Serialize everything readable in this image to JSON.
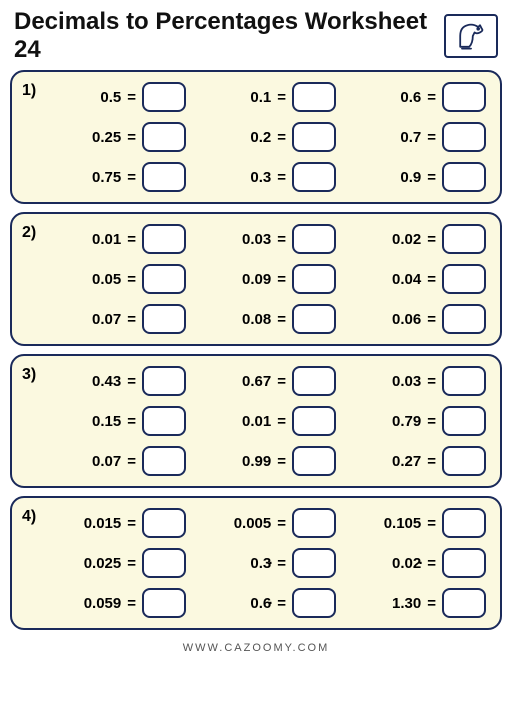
{
  "title": "Decimals to Percentages Worksheet 24",
  "footer": "WWW.CAZOOMY.COM",
  "icon_name": "falcon-icon",
  "colors": {
    "panel_bg": "#fbf9e0",
    "border": "#1a2a5a",
    "page_bg": "#ffffff",
    "text": "#000000"
  },
  "panels": [
    {
      "num": "1)",
      "items": [
        {
          "d": "0.5"
        },
        {
          "d": "0.1"
        },
        {
          "d": "0.6"
        },
        {
          "d": "0.25"
        },
        {
          "d": "0.2"
        },
        {
          "d": "0.7"
        },
        {
          "d": "0.75"
        },
        {
          "d": "0.3"
        },
        {
          "d": "0.9"
        }
      ]
    },
    {
      "num": "2)",
      "items": [
        {
          "d": "0.01"
        },
        {
          "d": "0.03"
        },
        {
          "d": "0.02"
        },
        {
          "d": "0.05"
        },
        {
          "d": "0.09"
        },
        {
          "d": "0.04"
        },
        {
          "d": "0.07"
        },
        {
          "d": "0.08"
        },
        {
          "d": "0.06"
        }
      ]
    },
    {
      "num": "3)",
      "items": [
        {
          "d": "0.43"
        },
        {
          "d": "0.67"
        },
        {
          "d": "0.03"
        },
        {
          "d": "0.15"
        },
        {
          "d": "0.01"
        },
        {
          "d": "0.79"
        },
        {
          "d": "0.07"
        },
        {
          "d": "0.99"
        },
        {
          "d": "0.27"
        }
      ]
    },
    {
      "num": "4)",
      "items": [
        {
          "d": "0.015"
        },
        {
          "d": "0.005"
        },
        {
          "d": "0.105"
        },
        {
          "d": "0.025"
        },
        {
          "d": "0.3",
          "recurring_at": 2
        },
        {
          "d": "0.02",
          "recurring_at": 3
        },
        {
          "d": "0.059"
        },
        {
          "d": "0.6",
          "recurring_at": 2
        },
        {
          "d": "1.30"
        }
      ]
    }
  ]
}
